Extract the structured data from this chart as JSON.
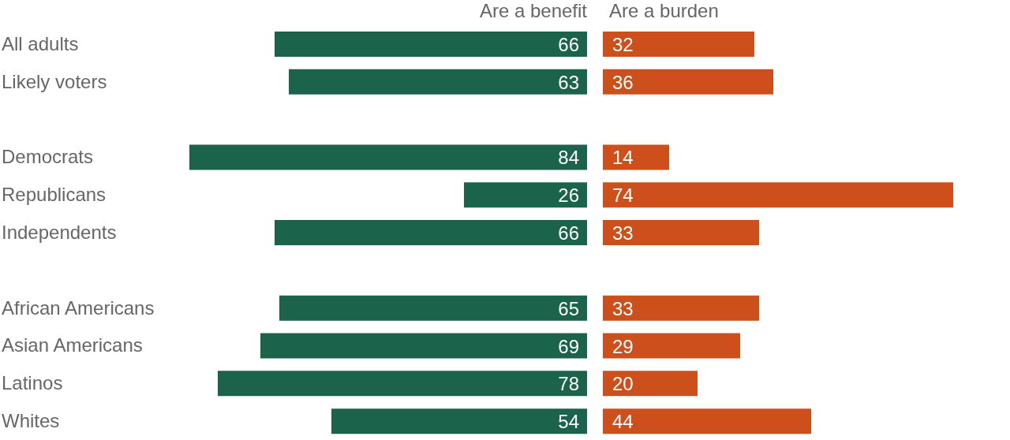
{
  "chart_data": [
    {
      "type": "bar",
      "orientation": "horizontal",
      "title": "Are a benefit",
      "data_labels": true,
      "xlim": [
        84,
        0
      ],
      "categories": [
        "All adults",
        "Likely voters",
        null,
        "Democrats",
        "Republicans",
        "Independents",
        null,
        "African Americans",
        "Asian Americans",
        "Latinos",
        "Whites"
      ],
      "color": "#1b634a",
      "values": [
        66,
        63,
        null,
        84,
        26,
        66,
        null,
        65,
        69,
        78,
        54
      ]
    },
    {
      "type": "bar",
      "orientation": "horizontal",
      "title": "Are a burden",
      "data_labels": true,
      "tick_labels": false,
      "categories": [
        null,
        null,
        null,
        null,
        null,
        null,
        null,
        null,
        null,
        null,
        null
      ],
      "color": "#cc4f1c",
      "values": [
        32,
        36,
        null,
        14,
        74,
        33,
        null,
        33,
        29,
        20,
        44
      ]
    }
  ]
}
